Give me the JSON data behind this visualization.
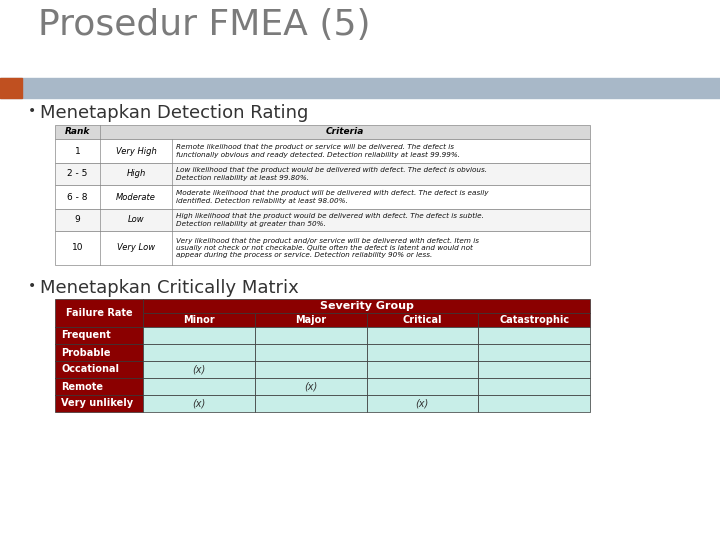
{
  "title": "Prosedur FMEA (5)",
  "title_color": "#7B7B7B",
  "title_fontsize": 26,
  "bullet1": "Menetapkan Detection Rating",
  "bullet2": "Menetapkan Critically Matrix",
  "bullet_fontsize": 13,
  "header_bar_color": "#A8B8C8",
  "orange_bar_color": "#C05020",
  "bg_color": "#FFFFFF",
  "detection_table": {
    "rows": [
      [
        "1",
        "Very High",
        "Remote likelihood that the product or service will be delivered. The defect is\nfunctionally obvious and ready detected. Detection reliability at least 99.99%."
      ],
      [
        "2 - 5",
        "High",
        "Low likelihood that the product would be delivered with defect. The defect is obvious.\nDetection reliability at least 99.80%."
      ],
      [
        "6 - 8",
        "Moderate",
        "Moderate likelihood that the product will be delivered with defect. The defect is easily\nidentified. Detection reliability at least 98.00%."
      ],
      [
        "9",
        "Low",
        "High likelihood that the product would be delivered with defect. The defect is subtle.\nDetection reliability at greater than 50%."
      ],
      [
        "10",
        "Very Low",
        "Very likelihood that the product and/or service will be delivered with defect. Item is\nusually not check or not checkable. Quite often the defect is latent and would not\nappear during the process or service. Detection reliability 90% or less."
      ]
    ],
    "header_bg": "#D8D8D8",
    "border_color": "#888888"
  },
  "criticality_table": {
    "header_bg": "#8B0000",
    "header_text": "#FFFFFF",
    "cell_bg": "#C8EEE8",
    "severity_header": "Severity Group",
    "columns": [
      "Minor",
      "Major",
      "Critical",
      "Catastrophic"
    ],
    "rows": [
      "Frequent",
      "Probable",
      "Occational",
      "Remote",
      "Very unlikely"
    ],
    "markers": {
      "Occational": {
        "Minor": "(x)"
      },
      "Remote": {
        "Major": "(x)"
      },
      "Very unlikely": {
        "Minor": "(x)",
        "Critical": "(x)"
      }
    }
  }
}
